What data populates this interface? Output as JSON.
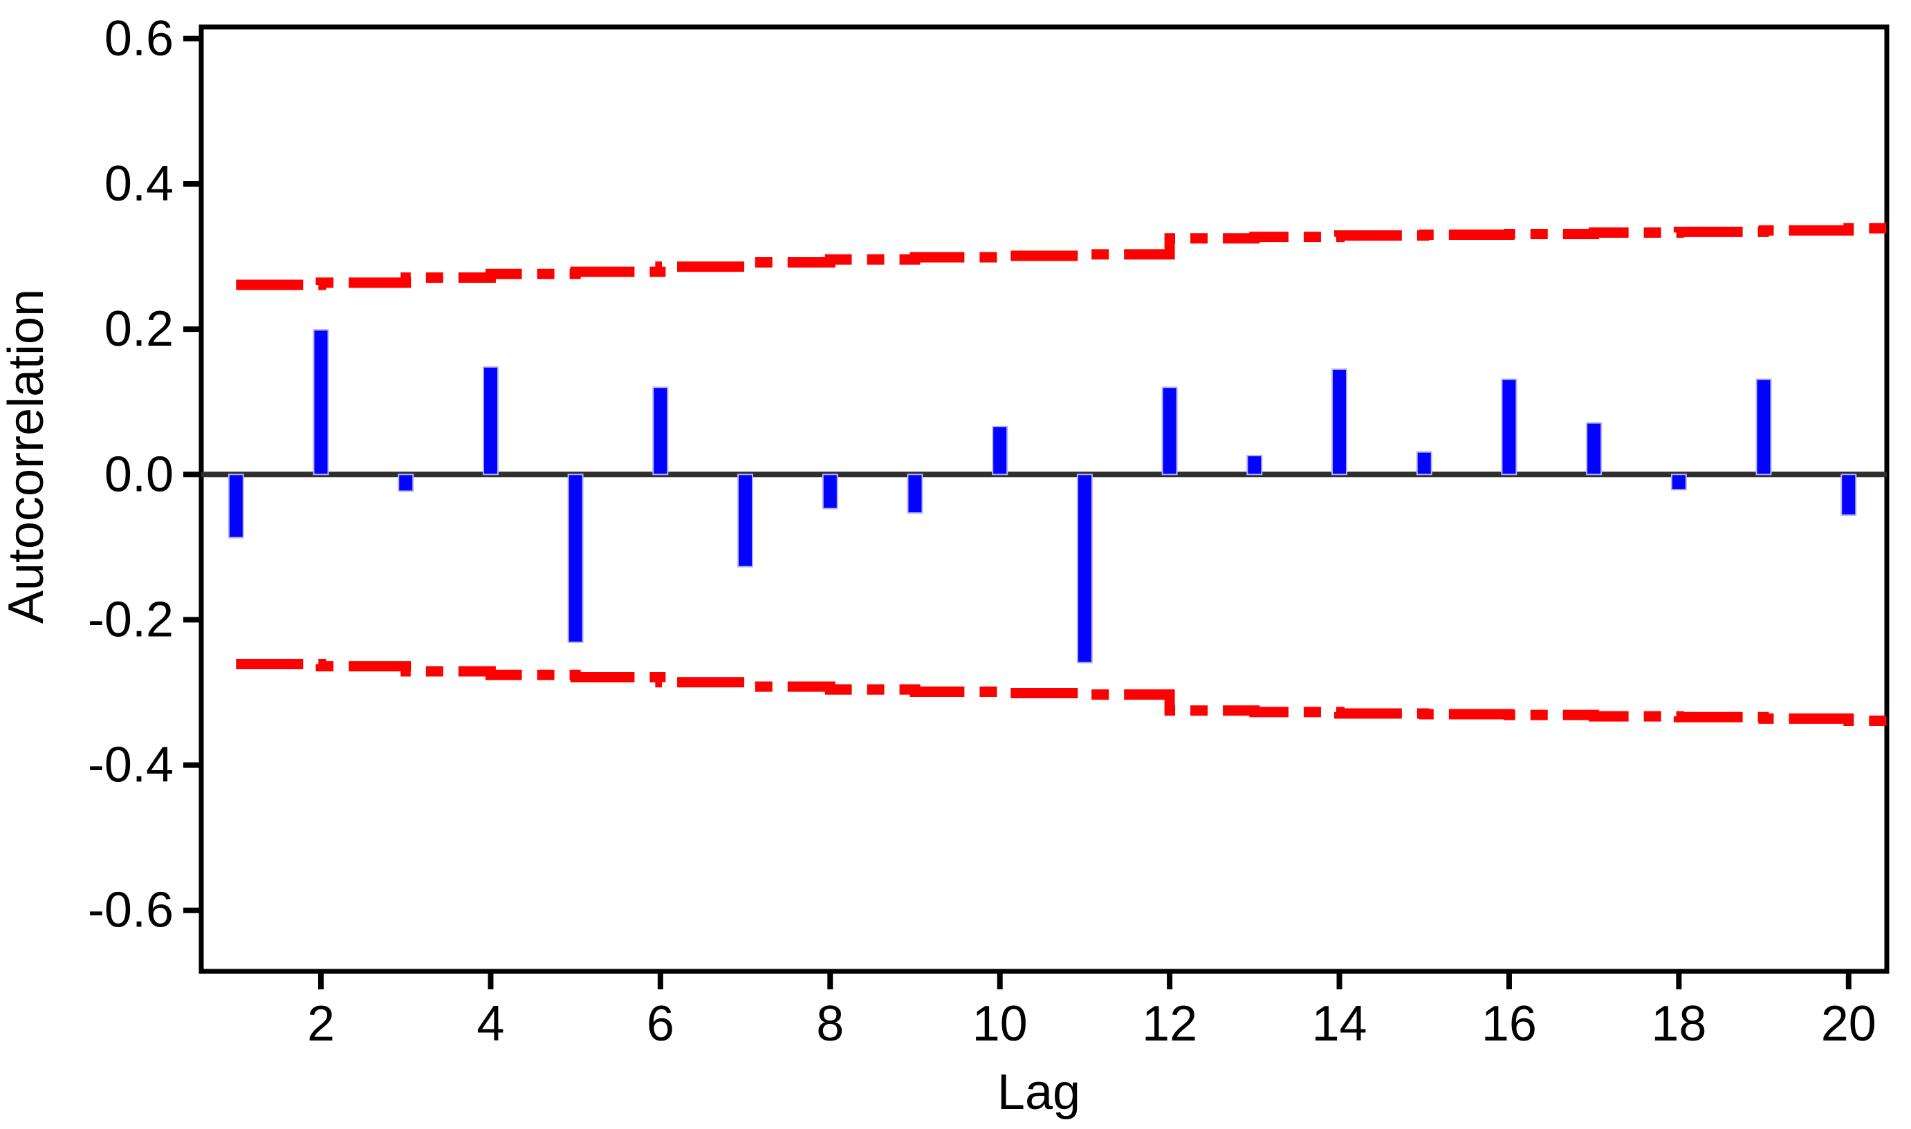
{
  "chart_data": {
    "type": "bar",
    "subtype": "autocorrelation-function",
    "title": "",
    "xlabel": "Lag",
    "ylabel": "Autocorrelation",
    "x": [
      1,
      2,
      3,
      4,
      5,
      6,
      7,
      8,
      9,
      10,
      11,
      12,
      13,
      14,
      15,
      16,
      17,
      18,
      19,
      20
    ],
    "acf_values": [
      -0.087,
      0.199,
      -0.023,
      0.148,
      -0.231,
      0.12,
      -0.127,
      -0.047,
      -0.053,
      0.066,
      -0.259,
      0.12,
      0.026,
      0.145,
      0.031,
      0.131,
      0.071,
      -0.021,
      0.131,
      -0.056
    ],
    "conf_upper": [
      0.261,
      0.264,
      0.271,
      0.276,
      0.279,
      0.286,
      0.292,
      0.296,
      0.299,
      0.301,
      0.303,
      0.325,
      0.327,
      0.329,
      0.33,
      0.331,
      0.333,
      0.334,
      0.336,
      0.339
    ],
    "conf_lower": [
      -0.261,
      -0.264,
      -0.271,
      -0.276,
      -0.279,
      -0.286,
      -0.292,
      -0.296,
      -0.299,
      -0.301,
      -0.303,
      -0.325,
      -0.327,
      -0.329,
      -0.33,
      -0.331,
      -0.333,
      -0.334,
      -0.336,
      -0.339
    ],
    "x_ticks": [
      2,
      4,
      6,
      8,
      10,
      12,
      14,
      16,
      18,
      20
    ],
    "x_tick_labels": [
      "2",
      "4",
      "6",
      "8",
      "10",
      "12",
      "14",
      "16",
      "18",
      "20"
    ],
    "y_ticks": [
      0.6,
      0.4,
      0.2,
      0.0,
      -0.2,
      -0.4,
      -0.6
    ],
    "y_tick_labels": [
      "0.6",
      "0.4",
      "0.2",
      "0.0",
      "-0.2",
      "-0.4",
      "-0.6"
    ],
    "xlim": [
      0.59,
      20.45
    ],
    "ylim": [
      -0.684,
      0.616
    ],
    "grid": false,
    "legend": "none",
    "band_style": "dash-dot-step",
    "colors": {
      "bar_fill": "#0202fe",
      "bar_edge": "#b4b4ff",
      "conf_band": "#fe0000",
      "zero_line": "#2e2e2e",
      "axis": "#000000",
      "text": "#000000",
      "background": "#ffffff"
    }
  }
}
